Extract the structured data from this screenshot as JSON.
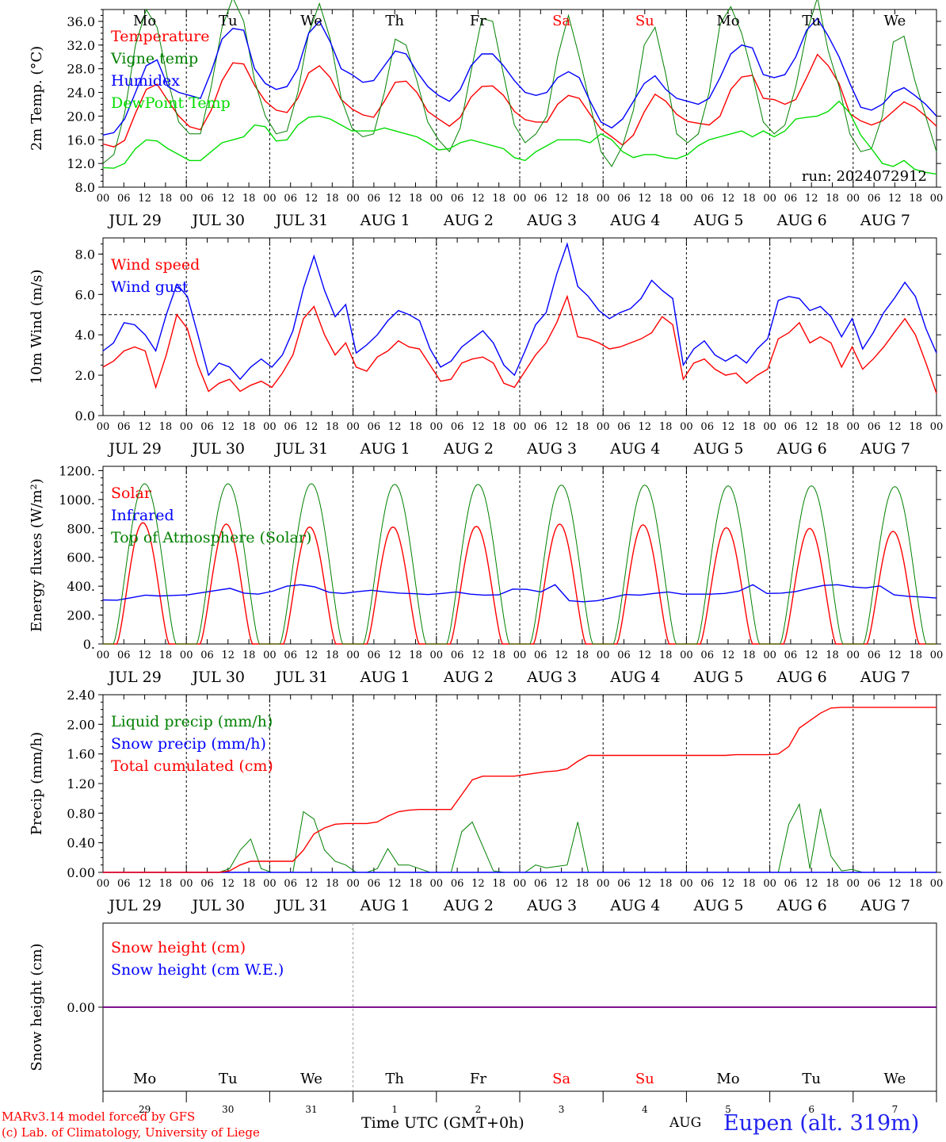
{
  "run_label": "run: 2024072912",
  "weekdays": [
    {
      "label": "Mo",
      "weekend": false
    },
    {
      "label": "Tu",
      "weekend": false
    },
    {
      "label": "We",
      "weekend": false
    },
    {
      "label": "Th",
      "weekend": false
    },
    {
      "label": "Fr",
      "weekend": false
    },
    {
      "label": "Sa",
      "weekend": true
    },
    {
      "label": "Su",
      "weekend": true
    },
    {
      "label": "Mo",
      "weekend": false
    },
    {
      "label": "Tu",
      "weekend": false
    },
    {
      "label": "We",
      "weekend": false
    }
  ],
  "date_labels": [
    "JUL 29",
    "JUL 30",
    "JUL 31",
    "AUG  1",
    "AUG  2",
    "AUG  3",
    "AUG  4",
    "AUG  5",
    "AUG  6",
    "AUG  7"
  ],
  "hour_ticks": [
    "00",
    "06",
    "12",
    "18"
  ],
  "bottom_day_numbers": [
    "29",
    "30",
    "31",
    "1",
    "2",
    "3",
    "4",
    "5",
    "6",
    "7"
  ],
  "footer": {
    "credit1": "MARv3.14 model forced by GFS",
    "credit2": "(c) Lab. of Climatology, University of Liege",
    "xlabel": "Time UTC (GMT+0h)",
    "month": "AUG",
    "station": "Eupen (alt. 319m)"
  },
  "colors": {
    "red": "#ff0000",
    "green": "#008000",
    "blue": "#0000ff",
    "lightgreen": "#00dd00",
    "purple": "#800080",
    "weekend": "#ff0000",
    "station": "#2222ee"
  },
  "chart_data": [
    {
      "id": "temperature",
      "type": "line",
      "ylabel": "2m Temp. (°C)",
      "yticks": [
        "36.0",
        "32.0",
        "28.0",
        "24.0",
        "20.0",
        "16.0",
        "12.0",
        "8.0"
      ],
      "ylim": [
        8,
        38
      ],
      "x_start": "2024-07-29 00 UTC",
      "x_end": "2024-08-08 00 UTC",
      "x_step_hours": 3,
      "series": [
        {
          "name": "Temperature",
          "color": "#ff0000",
          "values": [
            15.3,
            14.8,
            15.9,
            20.5,
            24.5,
            25.4,
            22.6,
            20.0,
            18.2,
            17.7,
            21.0,
            26.0,
            29.0,
            28.8,
            25.2,
            22.5,
            21.0,
            20.6,
            23.0,
            27.3,
            28.5,
            26.5,
            22.8,
            21.2,
            20.2,
            19.8,
            22.5,
            25.7,
            25.9,
            24.0,
            20.8,
            19.5,
            18.3,
            19.8,
            23.2,
            25.0,
            25.1,
            23.5,
            20.8,
            19.4,
            19.0,
            19.0,
            22.0,
            23.5,
            23.0,
            20.3,
            17.8,
            16.5,
            15.1,
            16.8,
            20.7,
            23.7,
            22.5,
            20.3,
            19.1,
            18.8,
            18.5,
            20.0,
            24.5,
            26.6,
            26.9,
            23.0,
            22.8,
            22.0,
            22.8,
            26.5,
            30.4,
            28.5,
            25.5,
            20.4,
            19.2,
            18.5,
            19.2,
            20.8,
            22.4,
            21.5,
            20.0,
            18.3
          ]
        },
        {
          "name": "Vigne temp",
          "color": "#008000",
          "values": [
            12.0,
            13.5,
            20.5,
            32.0,
            38.0,
            35.0,
            26.0,
            19.0,
            17.0,
            17.0,
            25.0,
            35.0,
            40.0,
            36.0,
            26.0,
            20.0,
            17.0,
            17.5,
            24.0,
            34.0,
            39.0,
            33.0,
            23.0,
            18.0,
            16.5,
            17.0,
            24.0,
            33.0,
            32.0,
            26.0,
            19.0,
            16.0,
            14.0,
            18.0,
            27.5,
            36.5,
            36.0,
            27.0,
            18.5,
            15.5,
            17.0,
            20.0,
            30.0,
            37.0,
            30.0,
            22.0,
            14.0,
            11.5,
            15.0,
            21.0,
            32.0,
            35.0,
            27.0,
            17.0,
            15.5,
            17.0,
            24.0,
            35.5,
            38.5,
            34.0,
            27.0,
            19.0,
            17.0,
            18.5,
            25.0,
            34.0,
            40.0,
            31.0,
            25.0,
            17.0,
            14.0,
            14.5,
            20.0,
            32.5,
            33.5,
            26.0,
            20.0,
            14.0
          ]
        },
        {
          "name": "Humidex",
          "color": "#0000ff",
          "values": [
            16.8,
            17.2,
            19.5,
            24.0,
            28.5,
            29.5,
            25.0,
            24.0,
            23.5,
            23.0,
            27.5,
            33.0,
            34.8,
            34.5,
            28.0,
            25.5,
            24.5,
            25.0,
            28.0,
            34.0,
            36.0,
            32.5,
            28.0,
            27.0,
            25.7,
            26.0,
            28.5,
            31.0,
            30.5,
            27.5,
            25.0,
            23.5,
            22.5,
            24.5,
            28.5,
            30.5,
            30.5,
            28.5,
            26.0,
            24.0,
            23.5,
            24.0,
            26.5,
            27.5,
            26.5,
            22.5,
            19.0,
            18.0,
            19.5,
            22.5,
            25.5,
            26.8,
            24.5,
            23.0,
            22.5,
            22.0,
            23.0,
            26.5,
            30.5,
            32.0,
            31.5,
            27.0,
            26.5,
            27.0,
            30.0,
            34.5,
            36.5,
            33.5,
            30.0,
            25.5,
            21.5,
            21.0,
            22.0,
            24.0,
            24.8,
            23.5,
            22.0,
            20.0
          ]
        },
        {
          "name": "DewPoint Temp",
          "color": "#00dd00",
          "values": [
            11.3,
            11.2,
            12.0,
            14.5,
            16.0,
            15.8,
            14.5,
            13.5,
            12.5,
            12.5,
            14.0,
            15.5,
            16.0,
            16.5,
            18.5,
            18.2,
            15.8,
            16.0,
            18.5,
            19.8,
            20.0,
            19.5,
            18.5,
            17.5,
            17.5,
            17.5,
            18.0,
            17.5,
            17.0,
            16.5,
            15.5,
            14.3,
            14.5,
            15.5,
            16.0,
            15.5,
            15.0,
            14.5,
            13.0,
            12.5,
            14.0,
            15.0,
            16.0,
            16.0,
            16.0,
            15.5,
            17.0,
            16.0,
            14.0,
            13.0,
            13.5,
            13.5,
            13.0,
            12.8,
            13.5,
            15.0,
            16.0,
            16.5,
            17.0,
            17.5,
            16.5,
            17.5,
            16.5,
            17.5,
            19.5,
            19.8,
            20.0,
            20.8,
            22.5,
            20.5,
            16.8,
            14.5,
            12.0,
            11.5,
            12.5,
            11.0,
            10.5,
            10.2
          ]
        }
      ]
    },
    {
      "id": "wind",
      "type": "line",
      "ylabel": "10m Wind (m/s)",
      "yticks": [
        "8.0",
        "6.0",
        "4.0",
        "2.0",
        "0.0"
      ],
      "ylim": [
        0,
        8.8
      ],
      "reference_line": 5.0,
      "x_start": "2024-07-29 00 UTC",
      "x_end": "2024-08-08 00 UTC",
      "x_step_hours": 3,
      "series": [
        {
          "name": "Wind speed",
          "color": "#ff0000",
          "values": [
            2.4,
            2.7,
            3.2,
            3.4,
            3.2,
            1.4,
            3.0,
            5.0,
            4.3,
            2.5,
            1.2,
            1.6,
            1.8,
            1.2,
            1.5,
            1.7,
            1.4,
            2.1,
            3.0,
            4.8,
            5.4,
            4.0,
            3.0,
            3.6,
            2.4,
            2.2,
            2.9,
            3.2,
            3.7,
            3.4,
            3.3,
            2.5,
            1.7,
            1.8,
            2.6,
            2.8,
            2.9,
            2.6,
            1.6,
            1.4,
            2.2,
            3.0,
            3.6,
            4.6,
            5.9,
            3.9,
            3.8,
            3.6,
            3.3,
            3.4,
            3.6,
            3.8,
            4.1,
            4.9,
            4.5,
            1.8,
            2.6,
            2.8,
            2.3,
            2.0,
            2.1,
            1.6,
            2.0,
            2.3,
            3.8,
            4.1,
            4.6,
            3.6,
            3.9,
            3.6,
            2.4,
            3.4,
            2.3,
            2.8,
            3.4,
            4.1,
            4.8,
            4.0,
            2.6,
            1.1
          ]
        },
        {
          "name": "Wind gust",
          "color": "#0000ff",
          "values": [
            3.2,
            3.6,
            4.6,
            4.5,
            4.0,
            3.2,
            5.0,
            6.5,
            5.9,
            4.0,
            2.0,
            2.6,
            2.4,
            1.8,
            2.4,
            2.8,
            2.4,
            3.0,
            4.2,
            6.3,
            7.9,
            6.2,
            4.9,
            5.5,
            3.1,
            3.5,
            4.0,
            4.7,
            5.2,
            5.0,
            4.7,
            3.3,
            2.4,
            2.7,
            3.4,
            3.8,
            4.2,
            3.6,
            2.5,
            2.0,
            3.2,
            4.5,
            5.1,
            7.0,
            8.5,
            6.4,
            5.9,
            5.2,
            4.8,
            5.1,
            5.3,
            5.8,
            6.7,
            6.2,
            5.8,
            2.5,
            3.3,
            3.7,
            3.0,
            2.7,
            3.0,
            2.6,
            3.3,
            3.8,
            5.7,
            5.9,
            5.8,
            5.2,
            5.4,
            4.9,
            3.9,
            4.8,
            3.3,
            4.1,
            5.1,
            5.8,
            6.6,
            5.9,
            4.3,
            3.1
          ]
        }
      ]
    },
    {
      "id": "radiation",
      "type": "line",
      "ylabel": "Energy fluxes (W/m²)",
      "yticks": [
        "1200.",
        "1000.",
        "800.",
        "600.",
        "400.",
        "200.",
        "0."
      ],
      "ylim": [
        0,
        1230
      ],
      "x_start": "2024-07-29 00 UTC",
      "x_end": "2024-08-08 00 UTC",
      "x_step_hours": 1,
      "series_formula_note": "Solar and TOA are daily bell curves; values below are daily peaks",
      "series": [
        {
          "name": "Solar",
          "color": "#ff0000",
          "daily_peak": [
            840,
            830,
            810,
            810,
            815,
            830,
            825,
            805,
            800,
            780
          ],
          "daytime_hours": [
            4,
            19
          ]
        },
        {
          "name": "Infrared",
          "color": "#0000ff",
          "values": [
            305,
            303,
            320,
            338,
            332,
            336,
            340,
            355,
            370,
            385,
            352,
            345,
            365,
            400,
            410,
            395,
            358,
            350,
            362,
            372,
            360,
            352,
            348,
            342,
            350,
            360,
            345,
            338,
            340,
            380,
            378,
            360,
            410,
            300,
            292,
            300,
            320,
            342,
            338,
            350,
            360,
            345,
            345,
            345,
            350,
            365,
            410,
            350,
            352,
            362,
            385,
            405,
            410,
            395,
            388,
            402,
            340,
            330,
            325,
            318
          ]
        },
        {
          "name": "Top of Atmosphere (Solar)",
          "color": "#008000",
          "daily_peak": [
            1110,
            1110,
            1110,
            1105,
            1105,
            1100,
            1100,
            1095,
            1095,
            1090
          ],
          "daytime_hours": [
            3,
            21
          ]
        }
      ]
    },
    {
      "id": "precip",
      "type": "line",
      "ylabel": "Precip (mm/h)",
      "yticks": [
        "2.40",
        "2.00",
        "1.60",
        "1.20",
        "0.80",
        "0.40",
        "0.00"
      ],
      "ylim": [
        0,
        2.4
      ],
      "x_start": "2024-07-29 00 UTC",
      "x_end": "2024-08-08 00 UTC",
      "x_step_hours": 3,
      "series": [
        {
          "name": "Liquid precip (mm/h)",
          "color": "#008000",
          "values": [
            0,
            0,
            0,
            0,
            0,
            0,
            0,
            0,
            0,
            0,
            0,
            0,
            0.05,
            0.3,
            0.45,
            0.05,
            0,
            0,
            0,
            0.82,
            0.72,
            0.3,
            0.15,
            0.1,
            0,
            0,
            0.05,
            0.32,
            0.1,
            0.1,
            0.05,
            0,
            0,
            0,
            0.55,
            0.68,
            0.35,
            0.02,
            0,
            0,
            0,
            0.1,
            0.06,
            0.08,
            0.1,
            0.68,
            0,
            0,
            0,
            0,
            0,
            0,
            0,
            0,
            0,
            0,
            0,
            0,
            0,
            0,
            0,
            0,
            0,
            0,
            0,
            0.65,
            0.92,
            0.05,
            0.86,
            0.22,
            0.02,
            0.04,
            0,
            0,
            0,
            0,
            0,
            0,
            0,
            0
          ]
        },
        {
          "name": "Snow precip (mm/h)",
          "color": "#0000ff",
          "values": [
            0,
            0
          ]
        },
        {
          "name": "Total cumulated (cm)",
          "color": "#ff0000",
          "values": [
            0,
            0,
            0,
            0,
            0,
            0,
            0,
            0,
            0,
            0,
            0,
            0,
            0.02,
            0.1,
            0.15,
            0.15,
            0.15,
            0.15,
            0.15,
            0.3,
            0.52,
            0.6,
            0.65,
            0.66,
            0.66,
            0.66,
            0.68,
            0.76,
            0.82,
            0.84,
            0.85,
            0.85,
            0.85,
            0.85,
            1.05,
            1.25,
            1.3,
            1.3,
            1.3,
            1.3,
            1.32,
            1.34,
            1.36,
            1.37,
            1.4,
            1.5,
            1.58,
            1.58,
            1.58,
            1.58,
            1.58,
            1.58,
            1.58,
            1.58,
            1.58,
            1.58,
            1.58,
            1.58,
            1.58,
            1.58,
            1.59,
            1.59,
            1.59,
            1.59,
            1.6,
            1.7,
            1.95,
            2.05,
            2.15,
            2.22,
            2.23,
            2.23,
            2.23,
            2.23,
            2.23,
            2.23,
            2.23,
            2.23,
            2.23,
            2.23
          ]
        }
      ]
    },
    {
      "id": "snow",
      "type": "line",
      "ylabel": "Snow height (cm)",
      "yticks": [
        "0.00"
      ],
      "x_start": "2024-07-29 00 UTC",
      "x_end": "2024-08-08 00 UTC",
      "series": [
        {
          "name": "Snow height (cm)",
          "color": "#ff0000",
          "values": [
            0,
            0
          ]
        },
        {
          "name": "Snow height (cm W.E.)",
          "color": "#0000ff",
          "values": [
            0,
            0
          ]
        }
      ]
    }
  ]
}
